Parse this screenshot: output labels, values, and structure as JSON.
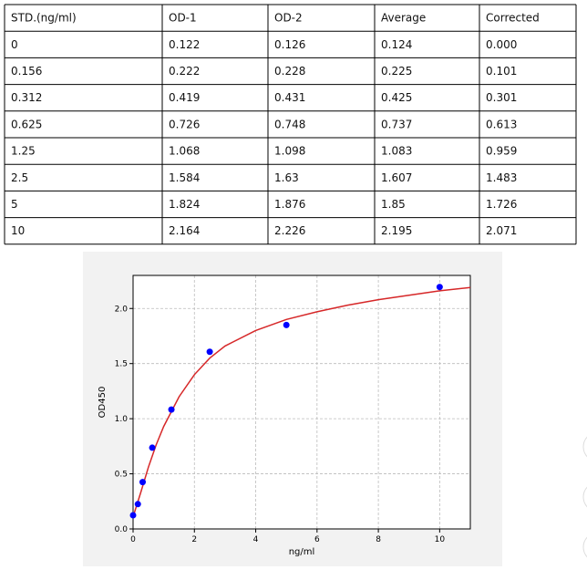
{
  "table": {
    "header": [
      "STD.(ng/ml)",
      "OD-1",
      "OD-2",
      "Average",
      "Corrected"
    ],
    "rows": [
      [
        "0",
        "0.122",
        "0.126",
        "0.124",
        "0.000"
      ],
      [
        "0.156",
        "0.222",
        "0.228",
        "0.225",
        "0.101"
      ],
      [
        "0.312",
        "0.419",
        "0.431",
        "0.425",
        "0.301"
      ],
      [
        "0.625",
        "0.726",
        "0.748",
        "0.737",
        "0.613"
      ],
      [
        "1.25",
        "1.068",
        "1.098",
        "1.083",
        "0.959"
      ],
      [
        "2.5",
        "1.584",
        "1.63",
        "1.607",
        "1.483"
      ],
      [
        "5",
        "1.824",
        "1.876",
        "1.85",
        "1.726"
      ],
      [
        "10",
        "2.164",
        "2.226",
        "2.195",
        "2.071"
      ]
    ]
  },
  "chart_data": {
    "type": "scatter",
    "x_label": "ng/ml",
    "y_label": "OD450",
    "points": {
      "color": "#0000ff",
      "x": [
        0,
        0.156,
        0.312,
        0.625,
        1.25,
        2.5,
        5,
        10
      ],
      "values": [
        0.124,
        0.225,
        0.425,
        0.737,
        1.083,
        1.607,
        1.85,
        2.195
      ]
    },
    "curve": {
      "color": "#d62728",
      "x": [
        0,
        0.25,
        0.5,
        0.75,
        1,
        1.5,
        2,
        2.5,
        3,
        4,
        5,
        6,
        7,
        8,
        9,
        10,
        11
      ],
      "values": [
        0.11,
        0.33,
        0.56,
        0.76,
        0.93,
        1.2,
        1.4,
        1.55,
        1.66,
        1.8,
        1.9,
        1.97,
        2.03,
        2.08,
        2.12,
        2.16,
        2.19
      ]
    },
    "xlim": [
      0,
      11
    ],
    "ylim": [
      0,
      2.3
    ],
    "xticks": [
      0,
      2,
      4,
      6,
      8,
      10
    ],
    "yticks": [
      {
        "value": 0,
        "label": "0.0"
      },
      {
        "value": 0.5,
        "label": "0.5"
      },
      {
        "value": 1,
        "label": "1.0"
      },
      {
        "value": 1.5,
        "label": "1.5"
      },
      {
        "value": 2,
        "label": "2.0"
      }
    ],
    "grid": true
  }
}
